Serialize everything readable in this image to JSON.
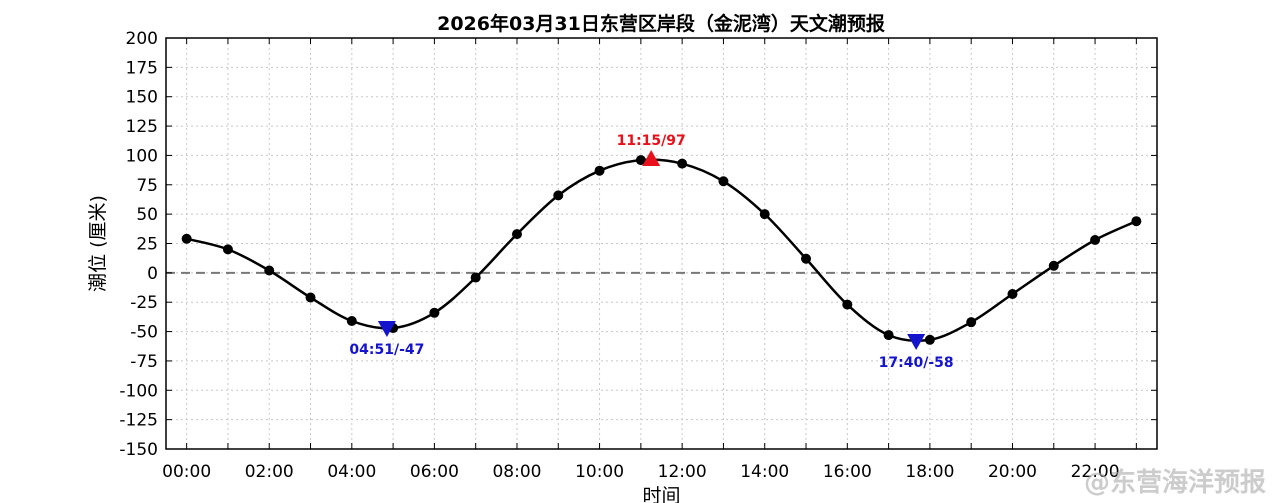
{
  "chart_data": {
    "type": "line",
    "title": "2026年03月31日东营区岸段（金泥湾）天文潮预报",
    "xlabel": "时间",
    "ylabel": "潮位 (厘米)",
    "ylim": [
      -150,
      200
    ],
    "yticks": [
      200,
      175,
      150,
      125,
      100,
      75,
      50,
      25,
      0,
      -25,
      -50,
      -75,
      -100,
      -125,
      -150
    ],
    "xlim": [
      -0.5,
      23.5
    ],
    "xticks": [
      {
        "value": 0,
        "label": "00:00"
      },
      {
        "value": 2,
        "label": "02:00"
      },
      {
        "value": 4,
        "label": "04:00"
      },
      {
        "value": 6,
        "label": "06:00"
      },
      {
        "value": 8,
        "label": "08:00"
      },
      {
        "value": 10,
        "label": "10:00"
      },
      {
        "value": 12,
        "label": "12:00"
      },
      {
        "value": 14,
        "label": "14:00"
      },
      {
        "value": 16,
        "label": "16:00"
      },
      {
        "value": 18,
        "label": "18:00"
      },
      {
        "value": 20,
        "label": "20:00"
      },
      {
        "value": 22,
        "label": "22:00"
      }
    ],
    "grid": true,
    "series": [
      {
        "x": [
          0,
          1,
          2,
          3,
          4,
          5,
          6,
          7,
          8,
          9,
          10,
          11,
          12,
          13,
          14,
          15,
          16,
          17,
          18,
          19,
          20,
          21,
          22,
          23
        ],
        "values": [
          29,
          20,
          2,
          -21,
          -41,
          -47,
          -34,
          -4,
          33,
          66,
          87,
          96,
          93,
          78,
          50,
          12,
          -27,
          -53,
          -57,
          -42,
          -18,
          6,
          28,
          44
        ],
        "color": "#000000"
      }
    ],
    "extremes": [
      {
        "type": "high",
        "x": 11.25,
        "value": 97,
        "label": "11:15/97",
        "color": "#e8101a"
      },
      {
        "type": "low",
        "x": 4.85,
        "value": -47,
        "label": "04:51/-47",
        "color": "#1414cc"
      },
      {
        "type": "low",
        "x": 17.667,
        "value": -58,
        "label": "17:40/-58",
        "color": "#1414cc"
      }
    ],
    "zero_line": {
      "value": 0,
      "color": "#777777"
    }
  },
  "watermark": "@东营海洋预报"
}
